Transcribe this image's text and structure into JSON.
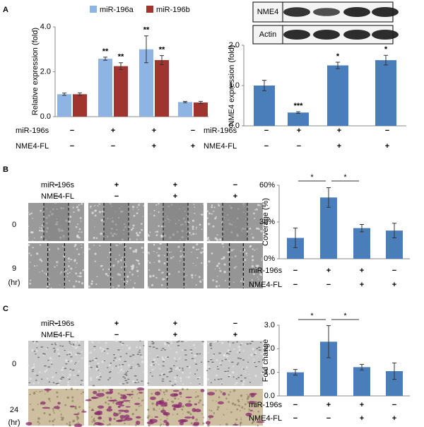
{
  "figure": {
    "panel_letters": [
      "A",
      "B",
      "C"
    ],
    "blot_labels": [
      "NME4",
      "Actin"
    ],
    "image_panels": [
      {
        "conditions": [
          {
            "label": "miR-196s",
            "signs": [
              "−",
              "+",
              "+",
              "−"
            ]
          },
          {
            "label": "NME4-FL",
            "signs": [
              "−",
              "−",
              "+",
              "+"
            ]
          }
        ],
        "row_labels": [
          "0",
          "9",
          "(hr)"
        ]
      },
      {
        "conditions": [
          {
            "label": "miR-196s",
            "signs": [
              "−",
              "+",
              "+",
              "−"
            ]
          },
          {
            "label": "NME4-FL",
            "signs": [
              "−",
              "−",
              "+",
              "+"
            ]
          }
        ],
        "row_labels": [
          "0",
          "24",
          "(hr)"
        ]
      }
    ]
  },
  "chart_data": [
    {
      "type": "bar",
      "y_label": "Relative expression (fold)",
      "series": [
        {
          "name": "miR-196a",
          "color": "#8db4e2",
          "values": [
            1.0,
            2.58,
            3.0,
            0.65
          ],
          "errors": [
            0.05,
            0.07,
            0.6,
            0.03
          ],
          "annotations": [
            null,
            "**",
            "**",
            null
          ]
        },
        {
          "name": "miR-196b",
          "color": "#a0342f",
          "values": [
            1.0,
            2.25,
            2.52,
            0.63
          ],
          "errors": [
            0.06,
            0.15,
            0.2,
            0.05
          ],
          "annotations": [
            null,
            "**",
            "**",
            null
          ]
        }
      ],
      "ylim": [
        0,
        4
      ],
      "yticks": [
        {
          "value": 0,
          "label": "0.0"
        },
        {
          "value": 2,
          "label": "2.0"
        },
        {
          "value": 4,
          "label": "4.0"
        }
      ],
      "conditions": [
        {
          "label": "miR-196s",
          "signs": [
            "−",
            "+",
            "+",
            "−"
          ]
        },
        {
          "label": "NME4-FL",
          "signs": [
            "−",
            "−",
            "+",
            "+"
          ]
        }
      ]
    },
    {
      "type": "bar",
      "y_label": "NME4 expression (fold)",
      "color": "#4a7ebb",
      "values": [
        1.0,
        0.33,
        1.5,
        1.63
      ],
      "errors": [
        0.13,
        0.02,
        0.08,
        0.12
      ],
      "annotations": [
        null,
        "***",
        "*",
        "*"
      ],
      "ylim": [
        0,
        2
      ],
      "yticks": [
        {
          "value": 0,
          "label": "0.0"
        },
        {
          "value": 1,
          "label": "1.0"
        },
        {
          "value": 2,
          "label": "2.0"
        }
      ],
      "conditions": [
        {
          "label": "miR-196s",
          "signs": [
            "−",
            "+",
            "+",
            "−"
          ]
        },
        {
          "label": "NME4-FL",
          "signs": [
            "−",
            "−",
            "+",
            "+"
          ]
        }
      ]
    },
    {
      "type": "bar",
      "y_label": "Coverage (%)",
      "color": "#4a7ebb",
      "values": [
        17,
        50,
        25,
        23
      ],
      "errors": [
        8,
        8,
        3,
        6
      ],
      "comparisons": [
        "*",
        "*"
      ],
      "ylim": [
        0,
        60
      ],
      "yticks": [
        {
          "value": 0,
          "label": "0%"
        },
        {
          "value": 30,
          "label": "30%"
        },
        {
          "value": 60,
          "label": "60%"
        }
      ],
      "conditions": [
        {
          "label": "miR-196s",
          "signs": [
            "−",
            "+",
            "+",
            "−"
          ]
        },
        {
          "label": "NME4-FL",
          "signs": [
            "−",
            "−",
            "+",
            "+"
          ]
        }
      ]
    },
    {
      "type": "bar",
      "y_label": "Fold change",
      "color": "#4a7ebb",
      "values": [
        1.0,
        2.3,
        1.22,
        1.05
      ],
      "errors": [
        0.12,
        0.68,
        0.12,
        0.35
      ],
      "comparisons": [
        "*",
        "*"
      ],
      "ylim": [
        0,
        3
      ],
      "yticks": [
        {
          "value": 0,
          "label": "0.0"
        },
        {
          "value": 1,
          "label": "1.0"
        },
        {
          "value": 2,
          "label": "2.0"
        },
        {
          "value": 3,
          "label": "3.0"
        }
      ],
      "conditions": [
        {
          "label": "miR-196s",
          "signs": [
            "−",
            "+",
            "+",
            "−"
          ]
        },
        {
          "label": "NME4-FL",
          "signs": [
            "−",
            "−",
            "+",
            "+"
          ]
        }
      ]
    }
  ]
}
